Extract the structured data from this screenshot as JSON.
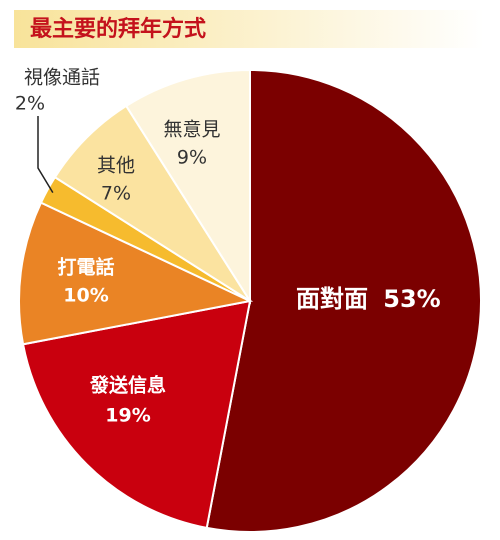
{
  "chart_data": {
    "type": "pie",
    "title": "最主要的拜年方式",
    "categories": [
      "面對面",
      "發送信息",
      "打電話",
      "視像通話",
      "其他",
      "無意見"
    ],
    "values": [
      53,
      19,
      10,
      2,
      7,
      9
    ],
    "value_labels": [
      "53%",
      "19%",
      "10%",
      "2%",
      "7%",
      "9%"
    ],
    "colors": [
      "#7b0000",
      "#c9000e",
      "#ea8425",
      "#f6bb2e",
      "#fbe3a0",
      "#fdf4dc"
    ]
  }
}
